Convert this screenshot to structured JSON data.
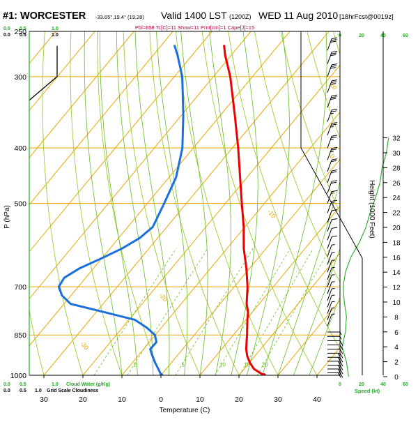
{
  "header": {
    "station": "#1: WORCESTER",
    "coords": "-33.65°,19.4° (19,28)",
    "valid_label": "Valid 1400 LST",
    "utc": "(1200Z)",
    "date": "WED 11 Aug 2010",
    "forecast": "[18hrFcst@0019z]",
    "indices": "Pbl=658 Tc[C]=11 Show=11 Prnt[cm]=1 Cape[J]=15"
  },
  "colors": {
    "temperature": "#ee0000",
    "dewpoint": "#1a6fe0",
    "isotherm": "#e8a800",
    "dry_adiabat": "#9ccc30",
    "moist_adiabat": "#66bb22",
    "mixing_ratio": "#66bb22",
    "axis_green": "#22aa22",
    "text": "#000000",
    "index_text": "#aa0044"
  },
  "labels": {
    "left_top_scale": [
      "0.0",
      "0.5",
      "1.0"
    ],
    "left_bottom_scale": [
      "0.0",
      "0.5",
      "1.0"
    ],
    "cloud_water": "Cloud Water (g/Kg)",
    "grid_cloudiness": "Grid Scale Cloudiness",
    "wind_top": [
      "0",
      "20",
      "40",
      "60"
    ],
    "wind_bottom": [
      "0",
      "20",
      "40",
      "60"
    ],
    "speed_label": "Speed (kt)",
    "height_label": "Height (1000 Feet)"
  },
  "chart_data": {
    "type": "line",
    "subtype": "skew-T log-P sounding",
    "xlabel": "Temperature (C)",
    "ylabel": "P (hPa)",
    "pressure_ticks": [
      250,
      300,
      400,
      500,
      700,
      850,
      1000
    ],
    "temperature_ticks": [
      30,
      20,
      10,
      0,
      10,
      20,
      30,
      40
    ],
    "height_ticks": [
      0,
      2,
      4,
      6,
      8,
      10,
      12,
      14,
      16,
      18,
      20,
      22,
      24,
      26,
      28,
      30,
      32
    ],
    "isotherm_labels": [
      "10",
      "0",
      "-10",
      "-20",
      "-30",
      "-40",
      "-50"
    ],
    "mixing_ratio_labels": [
      "2",
      "5",
      "10",
      "15",
      "20"
    ],
    "series": [
      {
        "name": "Temperature",
        "pressure": [
          1000,
          975,
          950,
          925,
          900,
          875,
          850,
          800,
          775,
          750,
          700,
          650,
          600,
          550,
          500,
          450,
          400,
          350,
          300,
          275,
          265
        ],
        "temperature": [
          26.4,
          22.5,
          20.1,
          18.0,
          16.3,
          14.9,
          13.5,
          10.4,
          8.9,
          6.8,
          3.4,
          -0.8,
          -5.7,
          -10.3,
          -15.8,
          -21.8,
          -28.5,
          -36.4,
          -45.7,
          -51.6,
          -53.8
        ]
      },
      {
        "name": "Dewpoint",
        "pressure": [
          1000,
          975,
          950,
          925,
          900,
          875,
          850,
          825,
          800,
          775,
          750,
          725,
          700,
          675,
          650,
          625,
          600,
          575,
          550,
          500,
          450,
          400,
          350,
          300,
          275,
          265
        ],
        "temperature": [
          0.1,
          -2.0,
          -4.2,
          -6.3,
          -8.3,
          -8.2,
          -10.1,
          -13.8,
          -18.4,
          -28.0,
          -38.3,
          -42.3,
          -45.0,
          -45.5,
          -43.6,
          -40.2,
          -36.9,
          -34.6,
          -33.6,
          -35.7,
          -38.2,
          -42.8,
          -49.6,
          -58.0,
          -63.8,
          -66.5
        ]
      }
    ],
    "surface_points": [
      {
        "name": "Surface temperature",
        "pressure": 1000,
        "temperature": 26.4
      },
      {
        "name": "Surface dewpoint",
        "pressure": 1000,
        "temperature": 0.1
      }
    ],
    "cloud_water_profile": {
      "pressure": [
        265,
        280,
        300,
        330
      ],
      "value": [
        1.0,
        1.0,
        1.0,
        0.0
      ]
    },
    "wind_speed_profile": {
      "height_kft": [
        0,
        2,
        4,
        6,
        8,
        10,
        12,
        14,
        16,
        18,
        20,
        22,
        24,
        26,
        28,
        30,
        32
      ],
      "speed_kt": [
        8,
        6,
        2,
        5,
        6,
        4,
        3,
        5,
        10,
        18,
        24,
        28,
        33,
        37,
        39,
        43,
        45
      ]
    },
    "wind_barb_pressures": [
      990,
      975,
      960,
      945,
      930,
      915,
      900,
      885,
      870,
      855,
      840,
      820,
      800,
      780,
      760,
      740,
      720,
      700,
      680,
      660,
      640,
      620,
      600,
      580,
      560,
      540,
      520,
      500,
      480,
      460,
      440,
      420,
      400,
      380,
      360,
      340,
      320,
      300,
      285,
      270
    ],
    "wind_barb_speeds_kt": [
      20,
      20,
      20,
      20,
      20,
      15,
      10,
      10,
      10,
      5,
      5,
      5,
      5,
      5,
      5,
      5,
      5,
      5,
      5,
      5,
      5,
      5,
      10,
      10,
      10,
      10,
      15,
      15,
      20,
      20,
      20,
      25,
      25,
      25,
      25,
      30,
      30,
      30,
      30,
      30
    ]
  }
}
